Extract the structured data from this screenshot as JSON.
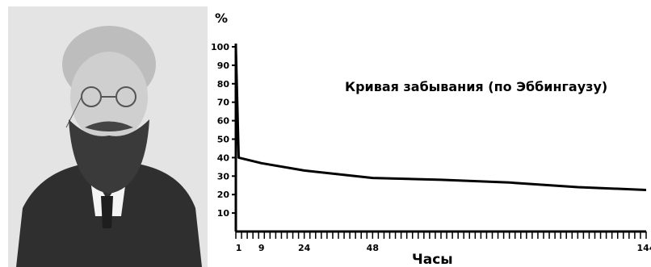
{
  "chart_data": {
    "type": "line",
    "title": "Кривая забывания (по Эббингаузу)",
    "xlabel": "Часы",
    "ylabel": "%",
    "x_ticks_labeled": [
      1,
      9,
      24,
      48,
      144
    ],
    "y_ticks": [
      10,
      20,
      30,
      40,
      50,
      60,
      70,
      80,
      90,
      100
    ],
    "xlim": [
      0,
      144
    ],
    "ylim": [
      0,
      100
    ],
    "grid": false,
    "series": [
      {
        "points": [
          [
            0,
            100
          ],
          [
            1,
            40
          ],
          [
            9,
            37
          ],
          [
            24,
            33
          ],
          [
            48,
            29
          ],
          [
            72,
            28
          ],
          [
            96,
            26.5
          ],
          [
            120,
            24
          ],
          [
            144,
            22.5
          ]
        ]
      }
    ]
  },
  "portrait": {
    "icon": "portrait-photo"
  }
}
